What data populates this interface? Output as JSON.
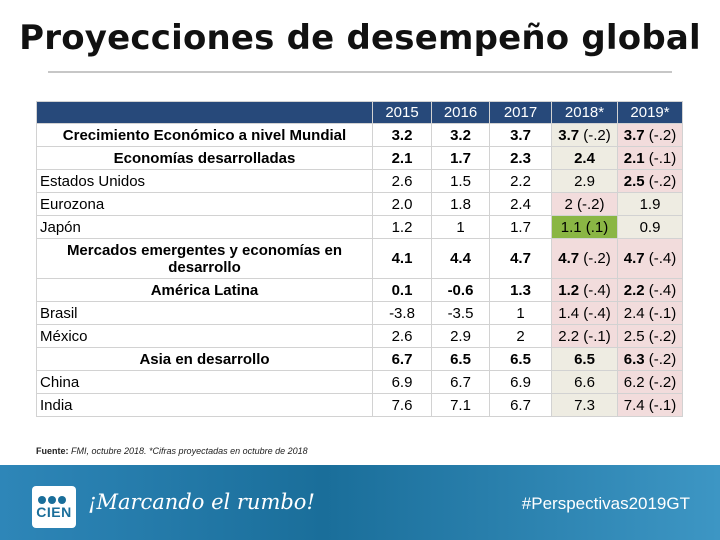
{
  "slide": {
    "title": "Proyecciones de desempeño global"
  },
  "table": {
    "headers": [
      "2015",
      "2016",
      "2017",
      "2018*",
      "2019*"
    ],
    "rows": [
      {
        "label": "Crecimiento Económico a nivel  Mundial",
        "v2015": "3.2",
        "v2016": "3.2",
        "v2017": "3.7",
        "v2018": "3.7",
        "v2018_note": "(-.2)",
        "v2019": "3.7",
        "v2019_note": "(-.2)"
      },
      {
        "label": "Economías desarrolladas",
        "v2015": "2.1",
        "v2016": "1.7",
        "v2017": "2.3",
        "v2018": "2.4",
        "v2018_note": "",
        "v2019": "2.1",
        "v2019_note": "(-.1)"
      },
      {
        "label": "Estados Unidos",
        "v2015": "2.6",
        "v2016": "1.5",
        "v2017": "2.2",
        "v2018": "2.9",
        "v2018_note": "",
        "v2019": "2.5",
        "v2019_note": "(-.2)"
      },
      {
        "label": "Eurozona",
        "v2015": "2.0",
        "v2016": "1.8",
        "v2017": "2.4",
        "v2018": "2",
        "v2018_note": "(-.2)",
        "v2019": "1.9",
        "v2019_note": ""
      },
      {
        "label": "Japón",
        "v2015": "1.2",
        "v2016": "1",
        "v2017": "1.7",
        "v2018": "1.1",
        "v2018_note": "(.1)",
        "v2019": "0.9",
        "v2019_note": ""
      },
      {
        "label": "Mercados emergentes y economías en desarrollo",
        "v2015": "4.1",
        "v2016": "4.4",
        "v2017": "4.7",
        "v2018": "4.7",
        "v2018_note": "(-.2)",
        "v2019": "4.7",
        "v2019_note": "(-.4)"
      },
      {
        "label": "América Latina",
        "v2015": "0.1",
        "v2016": "-0.6",
        "v2017": "1.3",
        "v2018": "1.2",
        "v2018_note": "(-.4)",
        "v2019": "2.2",
        "v2019_note": "(-.4)"
      },
      {
        "label": "Brasil",
        "v2015": "-3.8",
        "v2016": "-3.5",
        "v2017": "1",
        "v2018": "1.4",
        "v2018_note": "(-.4)",
        "v2019": "2.4",
        "v2019_note": "(-.1)"
      },
      {
        "label": "México",
        "v2015": "2.6",
        "v2016": "2.9",
        "v2017": "2",
        "v2018": "2.2",
        "v2018_note": "(-.1)",
        "v2019": "2.5",
        "v2019_note": "(-.2)"
      },
      {
        "label": "Asia en desarrollo",
        "v2015": "6.7",
        "v2016": "6.5",
        "v2017": "6.5",
        "v2018": "6.5",
        "v2018_note": "",
        "v2019": "6.3",
        "v2019_note": "(-.2)"
      },
      {
        "label": "China",
        "v2015": "6.9",
        "v2016": "6.7",
        "v2017": "6.9",
        "v2018": "6.6",
        "v2018_note": "",
        "v2019": "6.2",
        "v2019_note": "(-.2)"
      },
      {
        "label": "India",
        "v2015": "7.6",
        "v2016": "7.1",
        "v2017": "6.7",
        "v2018": "7.3",
        "v2018_note": "",
        "v2019": "7.4",
        "v2019_note": "(-.1)"
      }
    ]
  },
  "source": {
    "label": "Fuente:",
    "text": "FMI,  octubre 2018. *Cifras proyectadas en octubre de 2018"
  },
  "footer": {
    "logo_text": "CIEN",
    "slogan": "¡Marcando el rumbo!",
    "hashtag": "#Perspectivas2019GT"
  },
  "colors": {
    "header_bg": "#27497a",
    "col2018_bg": "#eeece2",
    "col2019_bg": "#f2dcdc",
    "highlight_green": "#8ab644",
    "footer_bg": "#1a6e9a"
  }
}
